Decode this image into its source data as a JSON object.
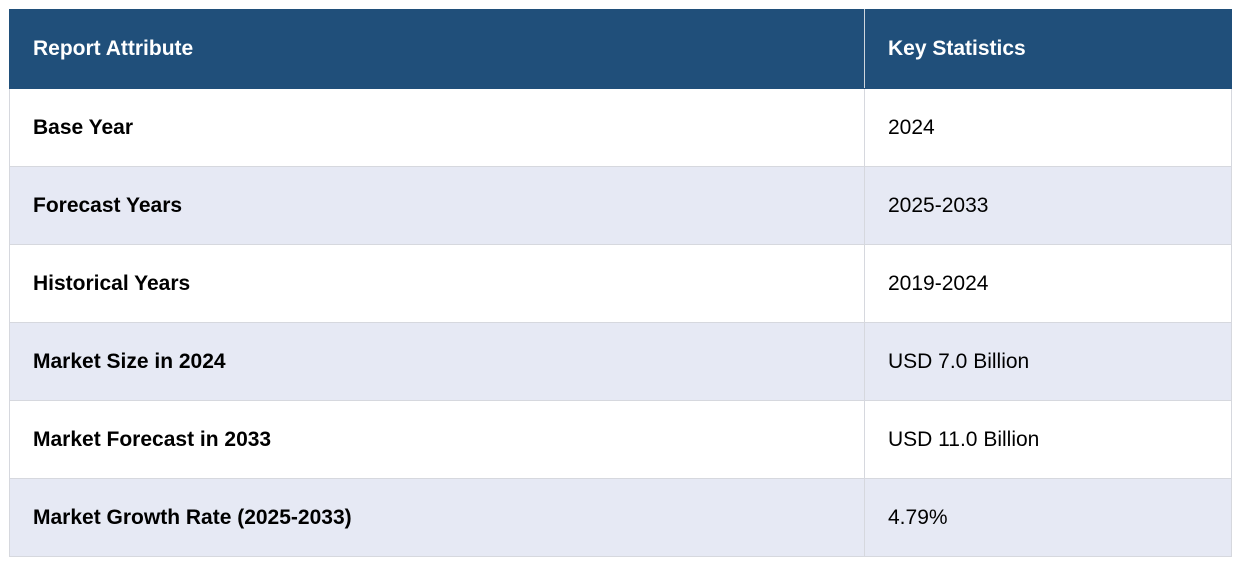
{
  "table": {
    "headers": [
      "Report Attribute",
      "Key Statistics"
    ],
    "rows": [
      {
        "attribute": "Base Year",
        "value": "2024"
      },
      {
        "attribute": "Forecast Years",
        "value": "2025-2033"
      },
      {
        "attribute": "Historical Years",
        "value": "2019-2024"
      },
      {
        "attribute": "Market Size in 2024",
        "value": "USD 7.0 Billion"
      },
      {
        "attribute": "Market Forecast in 2033",
        "value": "USD 11.0 Billion"
      },
      {
        "attribute": "Market Growth Rate (2025-2033)",
        "value": "4.79%"
      }
    ]
  },
  "colors": {
    "header_bg": "#204f7a",
    "header_text": "#ffffff",
    "stripe_bg": "#e6e9f4",
    "row_bg": "#ffffff",
    "border": "#d6d8de"
  }
}
